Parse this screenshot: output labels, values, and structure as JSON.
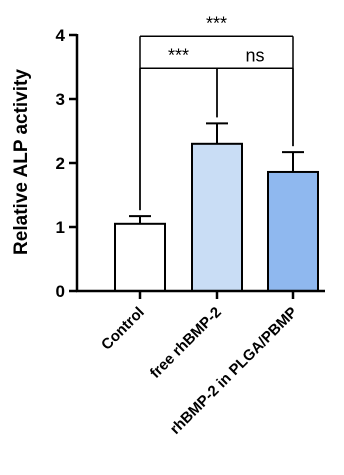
{
  "chart_data": {
    "type": "bar",
    "title": "",
    "xlabel": "",
    "ylabel": "Relative ALP activity",
    "ylim": [
      0,
      4
    ],
    "yticks": [
      0,
      1,
      2,
      3,
      4
    ],
    "grid": false,
    "categories": [
      "Control",
      "free rhBMP-2",
      "rhBMP-2 in PLGA/PBMP"
    ],
    "values": [
      1.05,
      2.3,
      1.86
    ],
    "errors": [
      0.12,
      0.32,
      0.31
    ],
    "colors": [
      "#ffffff",
      "#c9ddf5",
      "#8fb8ef"
    ],
    "significance": [
      {
        "from": 0,
        "to": 2,
        "label": "***",
        "level": 3.98
      },
      {
        "from": 0,
        "to": 1,
        "label": "***",
        "level": 3.48
      },
      {
        "from": 1,
        "to": 2,
        "label": "ns",
        "level": 3.48
      }
    ]
  }
}
